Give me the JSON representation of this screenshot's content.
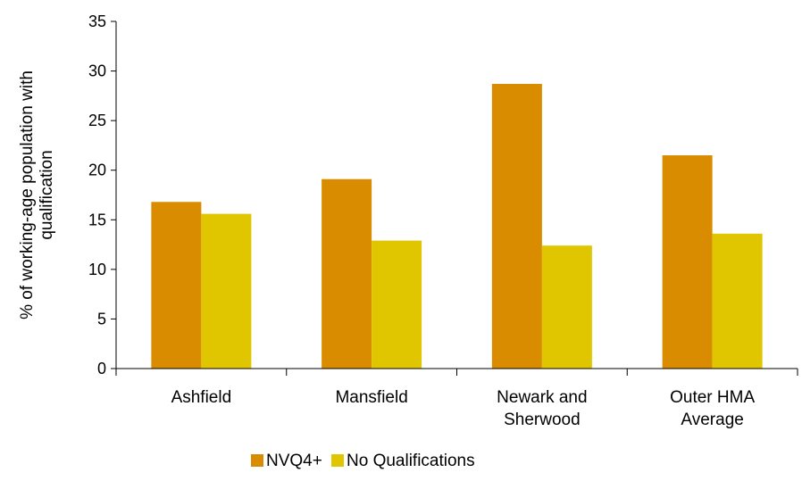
{
  "chart_data": {
    "type": "bar",
    "categories": [
      [
        "Ashfield"
      ],
      [
        "Mansfield"
      ],
      [
        "Newark and",
        "Sherwood"
      ],
      [
        "Outer HMA",
        "Average"
      ]
    ],
    "series": [
      {
        "name": "NVQ4+",
        "color": "#d98c00",
        "values": [
          16.8,
          19.1,
          28.7,
          21.5
        ]
      },
      {
        "name": "No Qualifications",
        "color": "#dfc600",
        "values": [
          15.6,
          12.9,
          12.4,
          13.6
        ]
      }
    ],
    "ylabel": [
      "% of working-age population with",
      "qualification"
    ],
    "ylim": [
      0,
      35
    ],
    "yticks": [
      0,
      5,
      10,
      15,
      20,
      25,
      30,
      35
    ],
    "legend_position": "bottom"
  }
}
